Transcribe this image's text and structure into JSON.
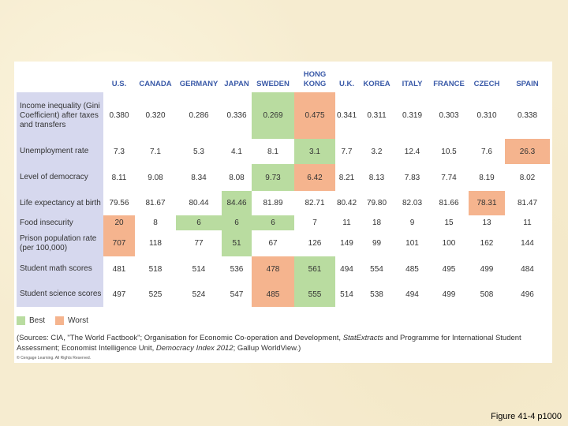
{
  "table": {
    "columns": [
      "",
      "U.S.",
      "CANADA",
      "GERMANY",
      "JAPAN",
      "SWEDEN",
      "HONG KONG",
      "U.K.",
      "KOREA",
      "ITALY",
      "FRANCE",
      "CZECH",
      "SPAIN"
    ],
    "rows": [
      {
        "label": "Income inequality (Gini Coefficient) after taxes and transfers",
        "cells": [
          {
            "v": "0.380",
            "s": ""
          },
          {
            "v": "0.320",
            "s": ""
          },
          {
            "v": "0.286",
            "s": ""
          },
          {
            "v": "0.336",
            "s": ""
          },
          {
            "v": "0.269",
            "s": "best"
          },
          {
            "v": "0.475",
            "s": "worst"
          },
          {
            "v": "0.341",
            "s": ""
          },
          {
            "v": "0.311",
            "s": ""
          },
          {
            "v": "0.319",
            "s": ""
          },
          {
            "v": "0.303",
            "s": ""
          },
          {
            "v": "0.310",
            "s": ""
          },
          {
            "v": "0.338",
            "s": ""
          }
        ]
      },
      {
        "label": "Unemployment rate",
        "cells": [
          {
            "v": "7.3",
            "s": ""
          },
          {
            "v": "7.1",
            "s": ""
          },
          {
            "v": "5.3",
            "s": ""
          },
          {
            "v": "4.1",
            "s": ""
          },
          {
            "v": "8.1",
            "s": ""
          },
          {
            "v": "3.1",
            "s": "best"
          },
          {
            "v": "7.7",
            "s": ""
          },
          {
            "v": "3.2",
            "s": ""
          },
          {
            "v": "12.4",
            "s": ""
          },
          {
            "v": "10.5",
            "s": ""
          },
          {
            "v": "7.6",
            "s": ""
          },
          {
            "v": "26.3",
            "s": "worst"
          }
        ]
      },
      {
        "label": "Level of democracy",
        "cells": [
          {
            "v": "8.11",
            "s": ""
          },
          {
            "v": "9.08",
            "s": ""
          },
          {
            "v": "8.34",
            "s": ""
          },
          {
            "v": "8.08",
            "s": ""
          },
          {
            "v": "9.73",
            "s": "best"
          },
          {
            "v": "6.42",
            "s": "worst"
          },
          {
            "v": "8.21",
            "s": ""
          },
          {
            "v": "8.13",
            "s": ""
          },
          {
            "v": "7.83",
            "s": ""
          },
          {
            "v": "7.74",
            "s": ""
          },
          {
            "v": "8.19",
            "s": ""
          },
          {
            "v": "8.02",
            "s": ""
          }
        ]
      },
      {
        "label": "Life expectancy at birth",
        "cells": [
          {
            "v": "79.56",
            "s": ""
          },
          {
            "v": "81.67",
            "s": ""
          },
          {
            "v": "80.44",
            "s": ""
          },
          {
            "v": "84.46",
            "s": "best"
          },
          {
            "v": "81.89",
            "s": ""
          },
          {
            "v": "82.71",
            "s": ""
          },
          {
            "v": "80.42",
            "s": ""
          },
          {
            "v": "79.80",
            "s": ""
          },
          {
            "v": "82.03",
            "s": ""
          },
          {
            "v": "81.66",
            "s": ""
          },
          {
            "v": "78.31",
            "s": "worst"
          },
          {
            "v": "81.47",
            "s": ""
          }
        ]
      },
      {
        "label": "Food insecurity",
        "cells": [
          {
            "v": "20",
            "s": "worst"
          },
          {
            "v": "8",
            "s": ""
          },
          {
            "v": "6",
            "s": "best"
          },
          {
            "v": "6",
            "s": "best"
          },
          {
            "v": "6",
            "s": "best"
          },
          {
            "v": "7",
            "s": ""
          },
          {
            "v": "11",
            "s": ""
          },
          {
            "v": "18",
            "s": ""
          },
          {
            "v": "9",
            "s": ""
          },
          {
            "v": "15",
            "s": ""
          },
          {
            "v": "13",
            "s": ""
          },
          {
            "v": "11",
            "s": ""
          }
        ]
      },
      {
        "label": "Prison population rate (per 100,000)",
        "cells": [
          {
            "v": "707",
            "s": "worst"
          },
          {
            "v": "118",
            "s": ""
          },
          {
            "v": "77",
            "s": ""
          },
          {
            "v": "51",
            "s": "best"
          },
          {
            "v": "67",
            "s": ""
          },
          {
            "v": "126",
            "s": ""
          },
          {
            "v": "149",
            "s": ""
          },
          {
            "v": "99",
            "s": ""
          },
          {
            "v": "101",
            "s": ""
          },
          {
            "v": "100",
            "s": ""
          },
          {
            "v": "162",
            "s": ""
          },
          {
            "v": "144",
            "s": ""
          }
        ]
      },
      {
        "label": "Student math scores",
        "cells": [
          {
            "v": "481",
            "s": ""
          },
          {
            "v": "518",
            "s": ""
          },
          {
            "v": "514",
            "s": ""
          },
          {
            "v": "536",
            "s": ""
          },
          {
            "v": "478",
            "s": "worst"
          },
          {
            "v": "561",
            "s": "best"
          },
          {
            "v": "494",
            "s": ""
          },
          {
            "v": "554",
            "s": ""
          },
          {
            "v": "485",
            "s": ""
          },
          {
            "v": "495",
            "s": ""
          },
          {
            "v": "499",
            "s": ""
          },
          {
            "v": "484",
            "s": ""
          }
        ]
      },
      {
        "label": "Student science scores",
        "cells": [
          {
            "v": "497",
            "s": ""
          },
          {
            "v": "525",
            "s": ""
          },
          {
            "v": "524",
            "s": ""
          },
          {
            "v": "547",
            "s": ""
          },
          {
            "v": "485",
            "s": "worst"
          },
          {
            "v": "555",
            "s": "best"
          },
          {
            "v": "514",
            "s": ""
          },
          {
            "v": "538",
            "s": ""
          },
          {
            "v": "494",
            "s": ""
          },
          {
            "v": "499",
            "s": ""
          },
          {
            "v": "508",
            "s": ""
          },
          {
            "v": "496",
            "s": ""
          }
        ]
      }
    ]
  },
  "legend": {
    "best": "Best",
    "worst": "Worst"
  },
  "colors": {
    "best": "#b9dca0",
    "worst": "#f5b48e",
    "header": "#3a5aa8",
    "label_bg": "#d6d8ee"
  },
  "sources": {
    "part1": "(Sources: CIA, \"The World Factbook\"; Organisation for Economic Co-operation and Development, ",
    "italic1": "StatExtracts",
    "part2": " and Programme for International Student Assessment; Economist Intelligence Unit, ",
    "italic2": "Democracy Index 2012",
    "part3": "; Gallup WorldView.)"
  },
  "copyright": "© Cengage Learning. All Rights Reserved.",
  "caption": "Figure 41-4 p1000"
}
